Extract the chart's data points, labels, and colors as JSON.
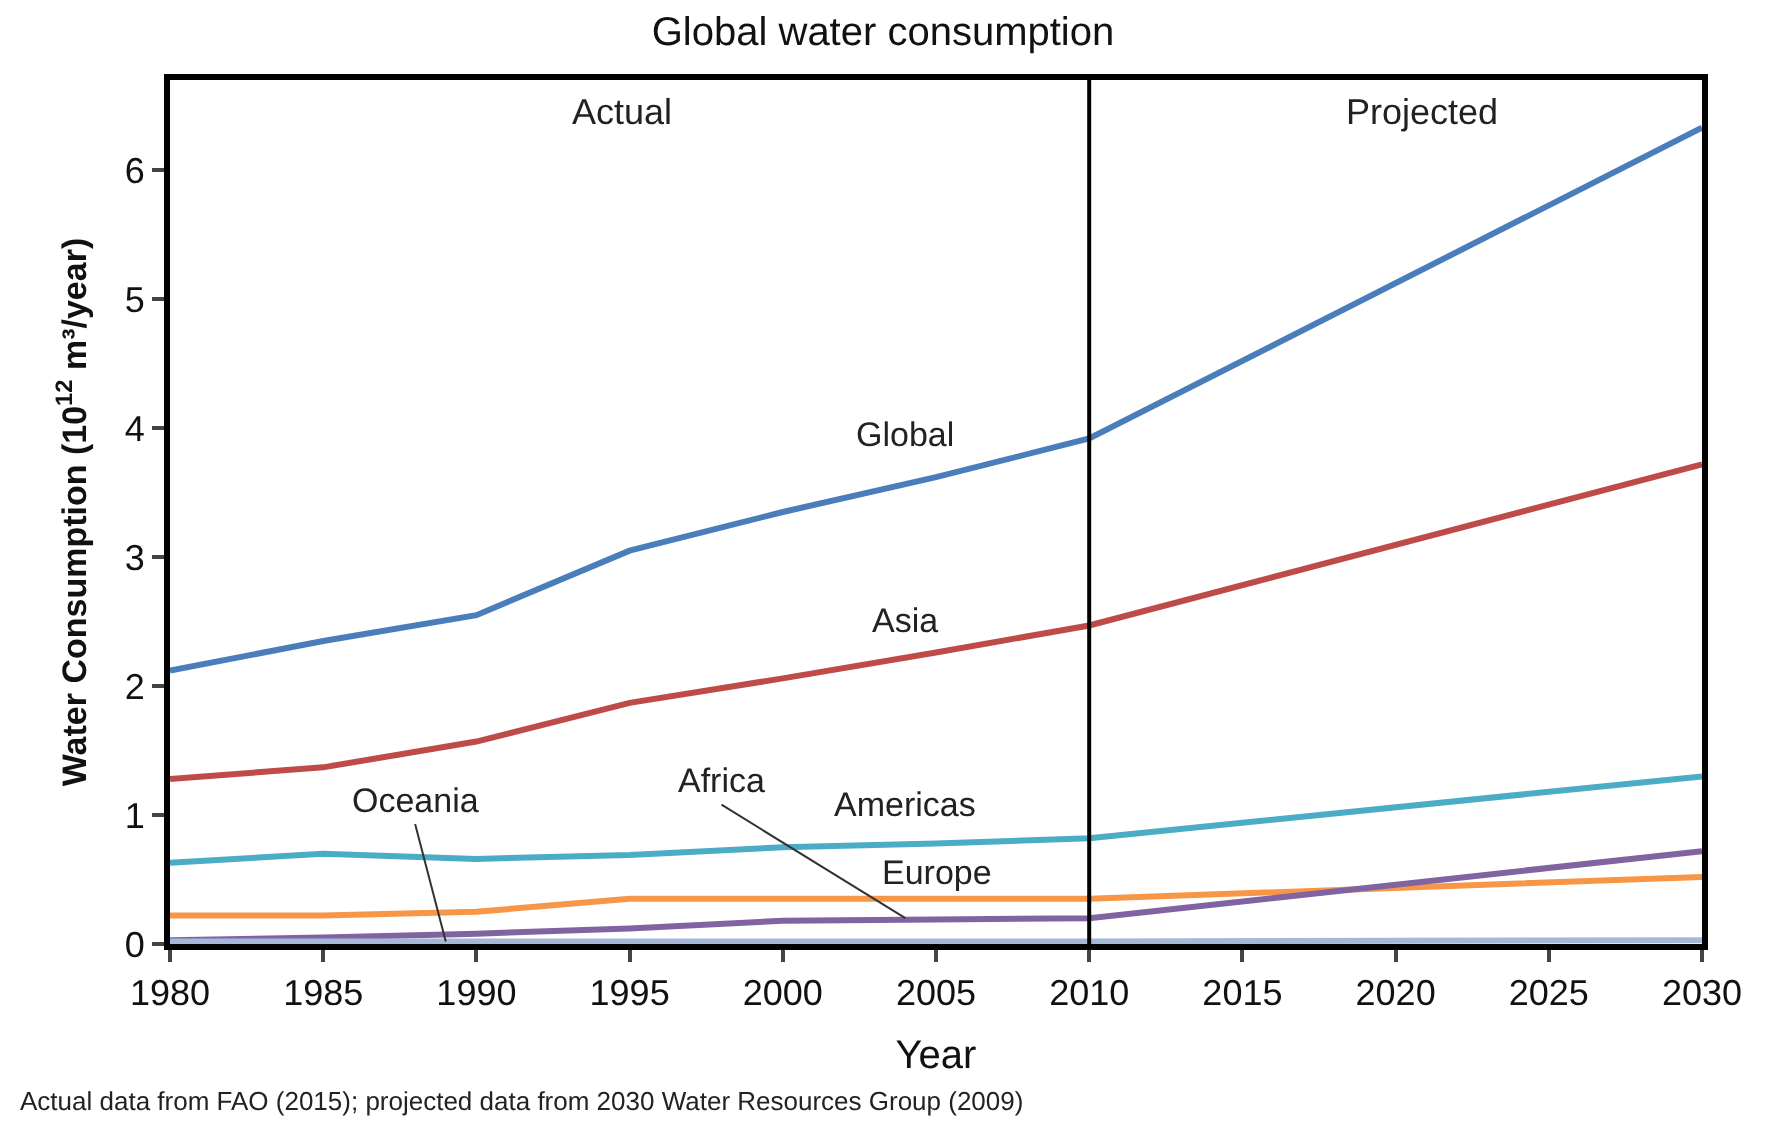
{
  "chart_data": {
    "type": "line",
    "title": "Global water consumption",
    "xlabel": "Year",
    "ylabel": "Water Consumption (10$^{12}$ m³/year)",
    "x": [
      1980,
      1985,
      1990,
      1995,
      2000,
      2005,
      2010,
      2030
    ],
    "series": [
      {
        "name": "Global",
        "color": "#4a7ebb",
        "values": [
          2.12,
          2.35,
          2.55,
          3.05,
          3.35,
          3.62,
          3.92,
          6.33
        ]
      },
      {
        "name": "Asia",
        "color": "#be4b48",
        "values": [
          1.28,
          1.37,
          1.57,
          1.87,
          2.06,
          2.26,
          2.47,
          3.72
        ]
      },
      {
        "name": "Americas",
        "color": "#4bacc6",
        "values": [
          0.63,
          0.7,
          0.66,
          0.69,
          0.75,
          0.78,
          0.82,
          1.3
        ]
      },
      {
        "name": "Europe",
        "color": "#f79646",
        "values": [
          0.22,
          0.22,
          0.25,
          0.35,
          0.35,
          0.35,
          0.35,
          0.52
        ]
      },
      {
        "name": "Africa",
        "color": "#8064a2",
        "values": [
          0.03,
          0.05,
          0.08,
          0.12,
          0.18,
          0.19,
          0.2,
          0.72
        ]
      },
      {
        "name": "Oceania",
        "color": "#a6b8d8",
        "values": [
          0.02,
          0.02,
          0.02,
          0.02,
          0.02,
          0.02,
          0.02,
          0.03
        ]
      }
    ],
    "xlim": [
      1980,
      2030
    ],
    "xticks": [
      1980,
      1985,
      1990,
      1995,
      2000,
      2005,
      2010,
      2015,
      2020,
      2025,
      2030
    ],
    "ylim": [
      0,
      6.7
    ],
    "yticks": [
      0,
      1,
      2,
      3,
      4,
      5,
      6
    ],
    "ref_lines": [
      {
        "axis": "x",
        "value": 2010,
        "color": "#000000"
      }
    ],
    "annotations": [
      "Actual",
      "Projected",
      "Actual data from FAO (2015); projected data from 2030 Water Resources Group (2009)"
    ],
    "legend": false,
    "grid": false,
    "marker": "none",
    "line_style": "solid"
  }
}
